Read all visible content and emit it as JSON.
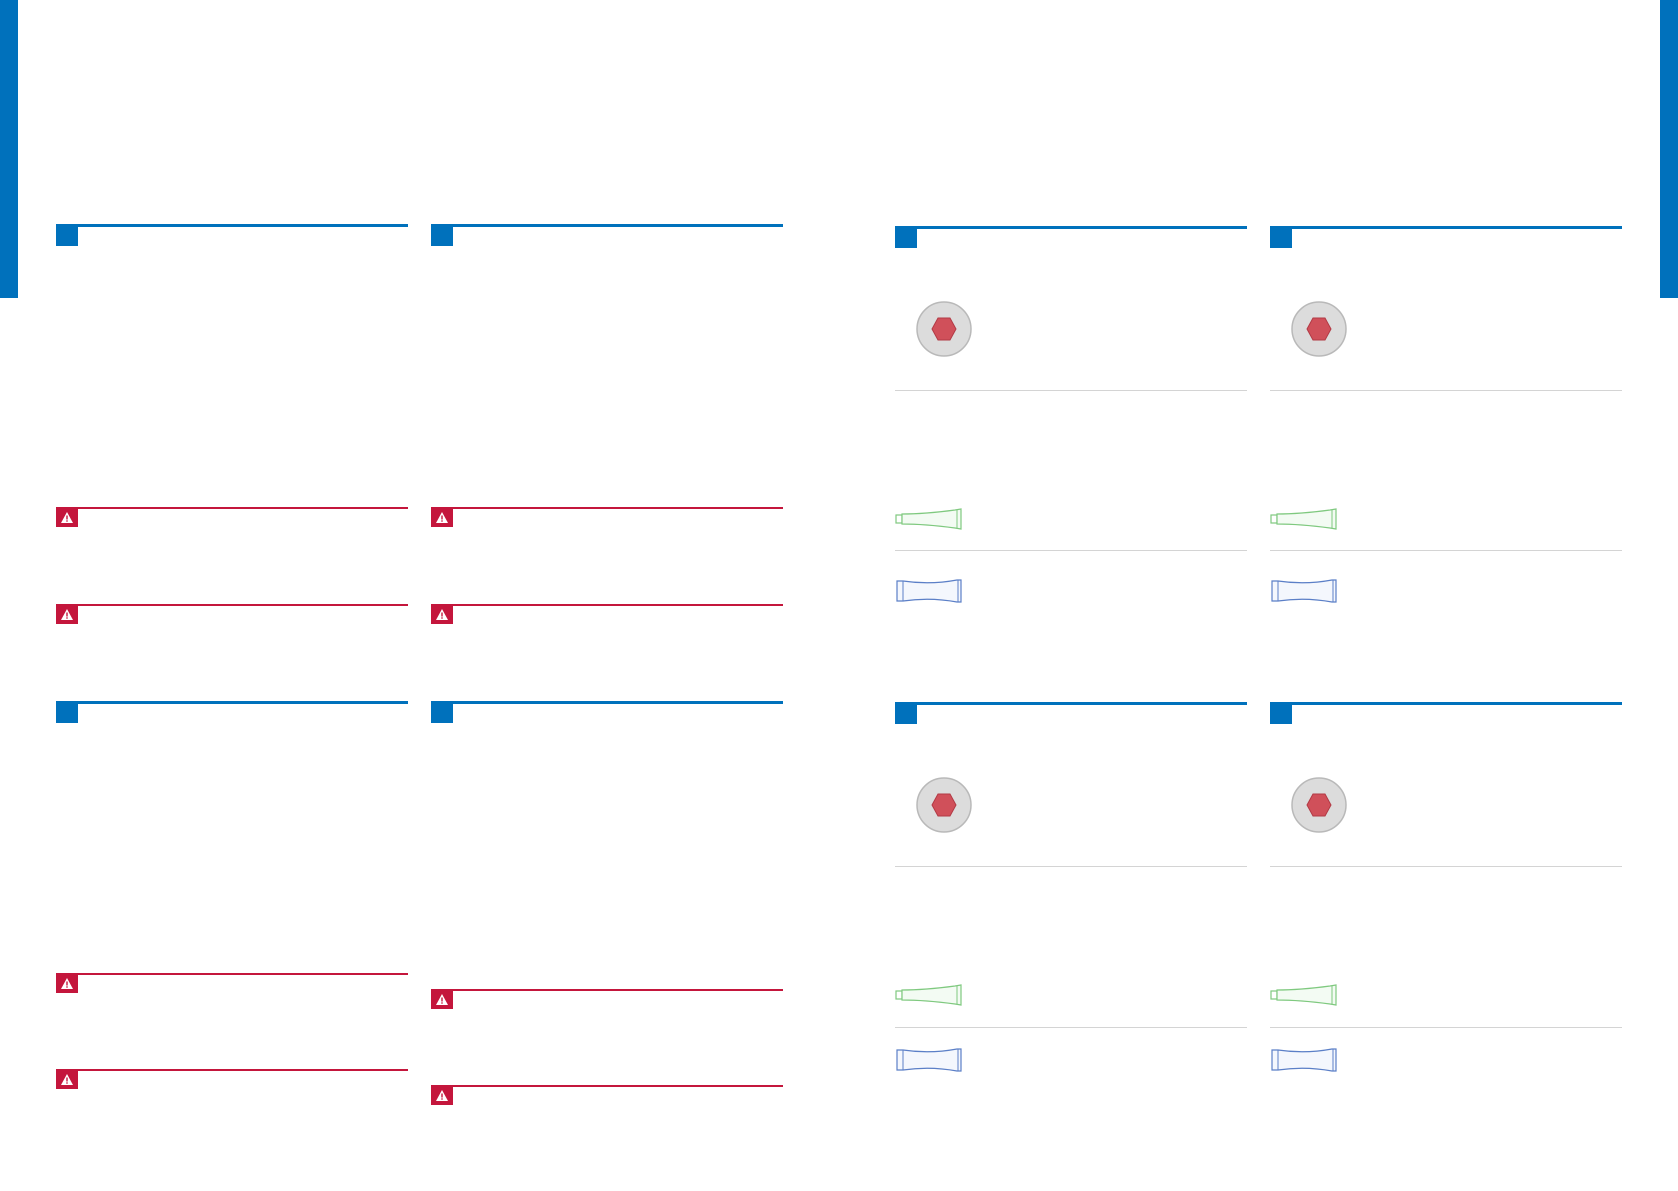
{
  "colors": {
    "brand_blue": "#0071bc",
    "warning_red": "#c4163c",
    "hex_red": "#d0505a",
    "rule_gray": "#d4d4d4",
    "tube_green": "#7fc97f",
    "tube_blue": "#5b7fc7"
  },
  "icons": {
    "section_marker": "square",
    "warning": "warning-triangle-icon",
    "bolt_head": "hex-bolt-icon",
    "tube_green": "grease-tube-green-icon",
    "tube_blue": "grease-tube-blue-icon"
  }
}
